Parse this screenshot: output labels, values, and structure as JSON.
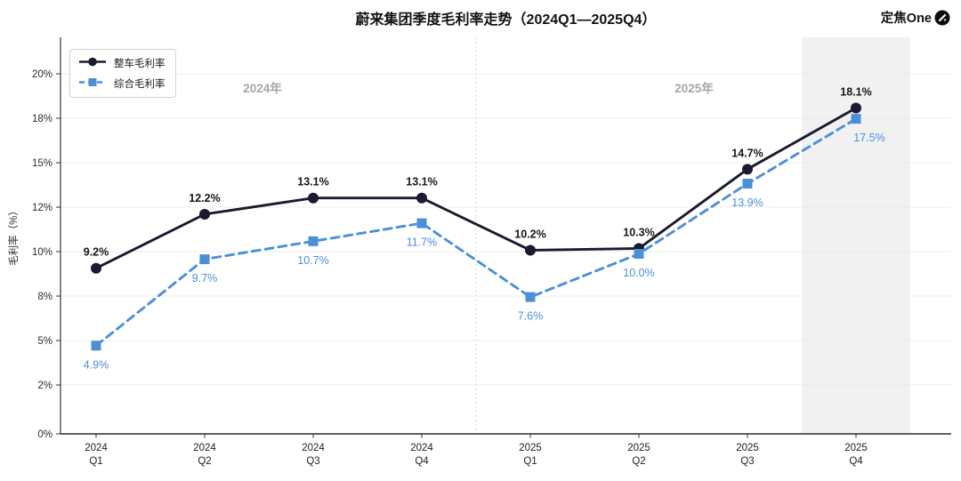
{
  "header": {
    "title": "蔚来集团季度毛利率走势（2024Q1—2025Q4）",
    "brand": "定焦One"
  },
  "chart_data": {
    "type": "line",
    "title": "蔚来集团季度毛利率走势（2024Q1—2025Q4）",
    "ylabel": "毛利率（%）",
    "xlabel": "",
    "grid": true,
    "legend_position": "top-left",
    "ylim": [
      0,
      20
    ],
    "y_tick_values": [
      0,
      2,
      5,
      8,
      10,
      12,
      15,
      18,
      20
    ],
    "y_tick_labels": [
      "0%",
      "2%",
      "5%",
      "8%",
      "10%",
      "12%",
      "15%",
      "18%",
      "20%"
    ],
    "categories": [
      [
        "2024",
        "Q1"
      ],
      [
        "2024",
        "Q2"
      ],
      [
        "2024",
        "Q3"
      ],
      [
        "2024",
        "Q4"
      ],
      [
        "2025",
        "Q1"
      ],
      [
        "2025",
        "Q2"
      ],
      [
        "2025",
        "Q3"
      ],
      [
        "2025",
        "Q4"
      ]
    ],
    "series": [
      {
        "name": "整车毛利率",
        "color": "#1a1a30",
        "marker": "circle",
        "style": "solid",
        "values": [
          9.2,
          12.2,
          13.1,
          13.1,
          10.2,
          10.3,
          14.7,
          18.1
        ],
        "labels": [
          "9.2%",
          "12.2%",
          "13.1%",
          "13.1%",
          "10.2%",
          "10.3%",
          "14.7%",
          "18.1%"
        ]
      },
      {
        "name": "综合毛利率",
        "color": "#4a90d9",
        "marker": "square",
        "style": "dashed",
        "values": [
          4.9,
          9.7,
          10.7,
          11.7,
          7.6,
          10.0,
          13.9,
          17.5
        ],
        "labels": [
          "4.9%",
          "9.7%",
          "10.7%",
          "11.7%",
          "7.6%",
          "10.0%",
          "13.9%",
          "17.5%"
        ]
      }
    ],
    "annotations": [
      {
        "text": "2024年"
      },
      {
        "text": "2025年"
      }
    ],
    "highlighted_category": "2025 Q4"
  }
}
